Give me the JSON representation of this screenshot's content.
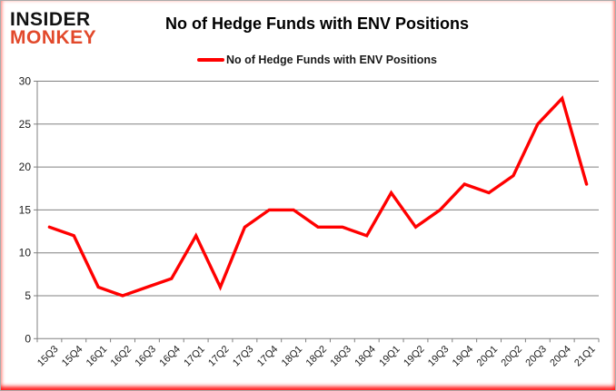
{
  "logo": {
    "line1": "INSIDER",
    "line2": "MONKEY"
  },
  "header": {
    "title": "No of Hedge Funds with ENV Positions"
  },
  "legend": {
    "label": "No of Hedge Funds with ENV Positions"
  },
  "colors": {
    "series_red": "#FF0000",
    "logo_black": "#121212",
    "logo_red": "#E2492B",
    "grid_gray": "#808080",
    "axis_label": "#1A1A1A"
  },
  "chart_data": {
    "type": "line",
    "title": "No of Hedge Funds with ENV Positions",
    "categories": [
      "15Q3",
      "15Q4",
      "16Q1",
      "16Q2",
      "16Q3",
      "16Q4",
      "17Q1",
      "17Q2",
      "17Q3",
      "17Q4",
      "18Q1",
      "18Q2",
      "18Q3",
      "18Q4",
      "19Q1",
      "19Q2",
      "19Q3",
      "19Q4",
      "20Q1",
      "20Q2",
      "20Q3",
      "20Q4",
      "21Q1"
    ],
    "series": [
      {
        "name": "No of Hedge Funds with ENV Positions",
        "color": "#FF0000",
        "values": [
          13,
          12,
          6,
          5,
          6,
          7,
          12,
          6,
          13,
          15,
          15,
          13,
          13,
          12,
          17,
          13,
          15,
          18,
          17,
          19,
          25,
          28,
          18
        ]
      }
    ],
    "xlabel": "",
    "ylabel": "",
    "ylim": [
      0,
      30
    ],
    "ytick_step": 5,
    "grid": "horizontal",
    "legend_position": "top-center"
  }
}
